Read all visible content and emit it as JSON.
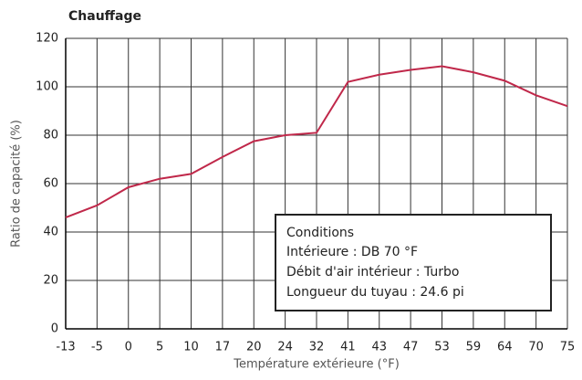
{
  "chart_data": {
    "type": "line",
    "title": "Chauffage",
    "xlabel": "Température extérieure (°F)",
    "ylabel": "Ratio de capacité (%)",
    "categories": [
      "-13",
      "-5",
      "0",
      "5",
      "10",
      "17",
      "20",
      "24",
      "32",
      "41",
      "43",
      "47",
      "53",
      "59",
      "64",
      "70",
      "75"
    ],
    "series": [
      {
        "name": "Chauffage",
        "color": "#c0284a",
        "values": [
          46,
          51,
          58.5,
          62,
          64,
          71,
          77.5,
          80,
          81,
          102,
          105,
          107,
          108.5,
          106,
          102.5,
          96.5,
          92
        ]
      }
    ],
    "ylim": [
      0,
      120
    ],
    "yticks": [
      0,
      20,
      40,
      60,
      80,
      100,
      120
    ],
    "grid": true,
    "annotation": {
      "title": "Conditions",
      "lines": [
        "Intérieure : DB 70 °F",
        "Débit d'air intérieur : Turbo",
        "Longueur du tuyau : 24.6 pi"
      ]
    }
  }
}
